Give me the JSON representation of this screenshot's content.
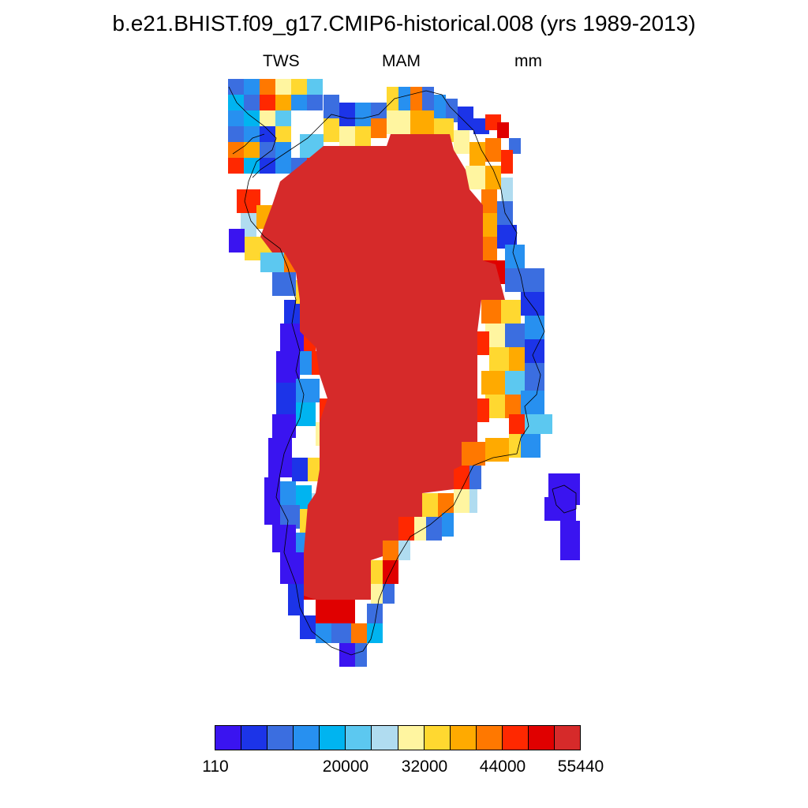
{
  "title": "b.e21.BHIST.f09_g17.CMIP6-historical.008 (yrs 1989-2013)",
  "left_label": "TWS",
  "center_label": "MAM",
  "right_label": "mm",
  "colors": {
    "c0": "#3a14f0",
    "c1": "#1c34e8",
    "c2": "#3b6ee0",
    "c3": "#2790f0",
    "c4": "#00b4f0",
    "c5": "#5cc8f0",
    "c6": "#b0dcf0",
    "c7": "#fff5a0",
    "c8": "#ffd830",
    "c9": "#ffaa00",
    "c10": "#ff7800",
    "c11": "#ff2800",
    "c12": "#e00000",
    "c13": "#d62a2a"
  },
  "colorbar": {
    "palette": [
      "#3a14f0",
      "#1c34e8",
      "#3b6ee0",
      "#2790f0",
      "#00b4f0",
      "#5cc8f0",
      "#b0dcf0",
      "#fff5a0",
      "#ffd830",
      "#ffaa00",
      "#ff7800",
      "#ff2800",
      "#e00000",
      "#d62a2a"
    ],
    "labels": [
      "110",
      "20000",
      "32000",
      "44000",
      "55440"
    ]
  }
}
